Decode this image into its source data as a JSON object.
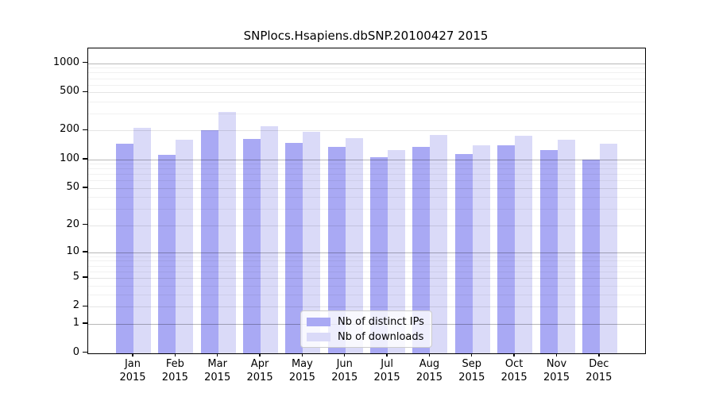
{
  "chart_data": {
    "type": "bar",
    "title": "SNPlocs.Hsapiens.dbSNP.20100427 2015",
    "categories": [
      "Jan",
      "Feb",
      "Mar",
      "Apr",
      "May",
      "Jun",
      "Jul",
      "Aug",
      "Sep",
      "Oct",
      "Nov",
      "Dec"
    ],
    "category_year": "2015",
    "series": [
      {
        "name": "Nb of distinct IPs",
        "color": "#a9a9f4",
        "values": [
          145,
          112,
          200,
          163,
          150,
          135,
          106,
          135,
          113,
          140,
          125,
          100
        ]
      },
      {
        "name": "Nb of downloads",
        "color": "#dadaf8",
        "values": [
          215,
          160,
          315,
          220,
          195,
          168,
          125,
          180,
          140,
          178,
          160,
          147
        ]
      }
    ],
    "xlabel": "",
    "ylabel": "",
    "yscale": "log1p",
    "ylim": [
      0,
      1430
    ],
    "yticks": [
      0,
      1,
      2,
      5,
      10,
      20,
      50,
      100,
      200,
      500,
      1000
    ],
    "major_gridline_values": [
      1,
      10,
      100,
      1000
    ],
    "minor_gridline_values": [
      3,
      4,
      6,
      7,
      8,
      9,
      30,
      40,
      60,
      70,
      80,
      90,
      300,
      400,
      600,
      700,
      800,
      900
    ],
    "grid": "horizontal",
    "legend_position": "lower-center"
  },
  "colors": {
    "background": "#ffffff",
    "axis": "#000000",
    "bar_distinct_ips": "#a9a9f4",
    "bar_downloads": "#dadaf8"
  }
}
